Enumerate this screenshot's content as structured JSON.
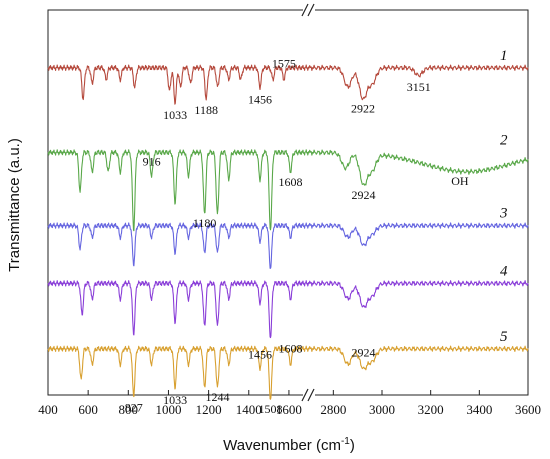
{
  "chart_data": {
    "type": "line",
    "xlabel": "Wavenumber (cm",
    "xlabel_sup": "-1",
    "xlabel_end": ")",
    "ylabel": "Transmittance (a.u.)",
    "x_ticks": [
      "400",
      "600",
      "800",
      "1000",
      "1200",
      "1400",
      "1600",
      "2800",
      "3000",
      "3200",
      "3400",
      "3600"
    ],
    "x_segments": [
      {
        "range": [
          400,
          1700
        ],
        "ticks": [
          400,
          600,
          800,
          1000,
          1200,
          1400,
          1600
        ]
      },
      {
        "range": [
          2700,
          3600
        ],
        "ticks": [
          2800,
          3000,
          3200,
          3400,
          3600
        ]
      }
    ],
    "axis_break": true,
    "series": [
      {
        "name": "1",
        "color": "#b5493c",
        "offset": 0.85,
        "peaks": [
          [
            575,
            0.08
          ],
          [
            620,
            0.04
          ],
          [
            690,
            0.03
          ],
          [
            760,
            0.03
          ],
          [
            832,
            0.05
          ],
          [
            1005,
            0.06
          ],
          [
            1033,
            0.09
          ],
          [
            1060,
            0.05
          ],
          [
            1110,
            0.04
          ],
          [
            1188,
            0.08
          ],
          [
            1245,
            0.05
          ],
          [
            1300,
            0.03
          ],
          [
            1360,
            0.03
          ],
          [
            1456,
            0.05
          ],
          [
            1520,
            0.03
          ],
          [
            1575,
            0.03
          ],
          [
            2860,
            0.05
          ],
          [
            2922,
            0.08
          ],
          [
            2960,
            0.04
          ],
          [
            3151,
            0.02
          ]
        ]
      },
      {
        "name": "2",
        "color": "#5aa84a",
        "offset": 0.63,
        "peaks": [
          [
            560,
            0.1
          ],
          [
            620,
            0.05
          ],
          [
            700,
            0.05
          ],
          [
            760,
            0.05
          ],
          [
            827,
            0.2
          ],
          [
            916,
            0.06
          ],
          [
            1033,
            0.13
          ],
          [
            1100,
            0.06
          ],
          [
            1180,
            0.16
          ],
          [
            1244,
            0.16
          ],
          [
            1300,
            0.07
          ],
          [
            1456,
            0.07
          ],
          [
            1508,
            0.2
          ],
          [
            1608,
            0.05
          ],
          [
            2850,
            0.04
          ],
          [
            2924,
            0.08
          ],
          [
            2960,
            0.04
          ]
        ],
        "broad": [
          3350,
          0.05,
          250
        ]
      },
      {
        "name": "3",
        "color": "#6666e0",
        "offset": 0.44,
        "peaks": [
          [
            560,
            0.06
          ],
          [
            620,
            0.03
          ],
          [
            760,
            0.03
          ],
          [
            827,
            0.1
          ],
          [
            916,
            0.03
          ],
          [
            1033,
            0.07
          ],
          [
            1100,
            0.03
          ],
          [
            1180,
            0.07
          ],
          [
            1244,
            0.07
          ],
          [
            1300,
            0.03
          ],
          [
            1456,
            0.04
          ],
          [
            1508,
            0.11
          ],
          [
            1608,
            0.03
          ],
          [
            2860,
            0.03
          ],
          [
            2924,
            0.05
          ],
          [
            2960,
            0.02
          ]
        ]
      },
      {
        "name": "4",
        "color": "#8a3fd8",
        "offset": 0.29,
        "peaks": [
          [
            570,
            0.08
          ],
          [
            620,
            0.04
          ],
          [
            760,
            0.04
          ],
          [
            827,
            0.13
          ],
          [
            916,
            0.04
          ],
          [
            1033,
            0.1
          ],
          [
            1100,
            0.04
          ],
          [
            1180,
            0.11
          ],
          [
            1244,
            0.11
          ],
          [
            1300,
            0.04
          ],
          [
            1456,
            0.05
          ],
          [
            1508,
            0.14
          ],
          [
            1608,
            0.04
          ],
          [
            2860,
            0.04
          ],
          [
            2924,
            0.06
          ],
          [
            2960,
            0.03
          ]
        ]
      },
      {
        "name": "5",
        "color": "#d8a030",
        "offset": 0.12,
        "peaks": [
          [
            565,
            0.08
          ],
          [
            620,
            0.04
          ],
          [
            760,
            0.04
          ],
          [
            827,
            0.12
          ],
          [
            916,
            0.04
          ],
          [
            1033,
            0.1
          ],
          [
            1100,
            0.04
          ],
          [
            1180,
            0.1
          ],
          [
            1244,
            0.1
          ],
          [
            1300,
            0.04
          ],
          [
            1456,
            0.05
          ],
          [
            1508,
            0.13
          ],
          [
            1608,
            0.04
          ],
          [
            2860,
            0.04
          ],
          [
            2924,
            0.05
          ],
          [
            2960,
            0.03
          ]
        ]
      }
    ],
    "annotations": [
      {
        "text": "1033",
        "x": 1033,
        "series": 0,
        "pos": "below"
      },
      {
        "text": "1188",
        "x": 1188,
        "series": 0,
        "pos": "below"
      },
      {
        "text": "1456",
        "x": 1456,
        "series": 0,
        "pos": "below"
      },
      {
        "text": "1575",
        "x": 1575,
        "series": 0,
        "pos": "above"
      },
      {
        "text": "2922",
        "x": 2922,
        "series": 0,
        "pos": "below"
      },
      {
        "text": "3151",
        "x": 3151,
        "series": 0,
        "pos": "below"
      },
      {
        "text": "916",
        "x": 916,
        "series": 1,
        "pos": "above"
      },
      {
        "text": "1180",
        "x": 1180,
        "series": 1,
        "pos": "below"
      },
      {
        "text": "1608",
        "x": 1608,
        "series": 1,
        "pos": "below"
      },
      {
        "text": "2924",
        "x": 2924,
        "series": 1,
        "pos": "below"
      },
      {
        "text": "OH",
        "x": 3320,
        "series": 1,
        "pos": "below"
      },
      {
        "text": "1456",
        "x": 1456,
        "series": 4,
        "pos": "above"
      },
      {
        "text": "1608",
        "x": 1608,
        "series": 4,
        "pos": "above"
      },
      {
        "text": "2924",
        "x": 2924,
        "series": 4,
        "pos": "above"
      },
      {
        "text": "827",
        "x": 827,
        "series": 4,
        "pos": "below"
      },
      {
        "text": "1033",
        "x": 1033,
        "series": 4,
        "pos": "below"
      },
      {
        "text": "1244",
        "x": 1244,
        "series": 4,
        "pos": "below"
      },
      {
        "text": "1508",
        "x": 1508,
        "series": 4,
        "pos": "below"
      }
    ]
  }
}
